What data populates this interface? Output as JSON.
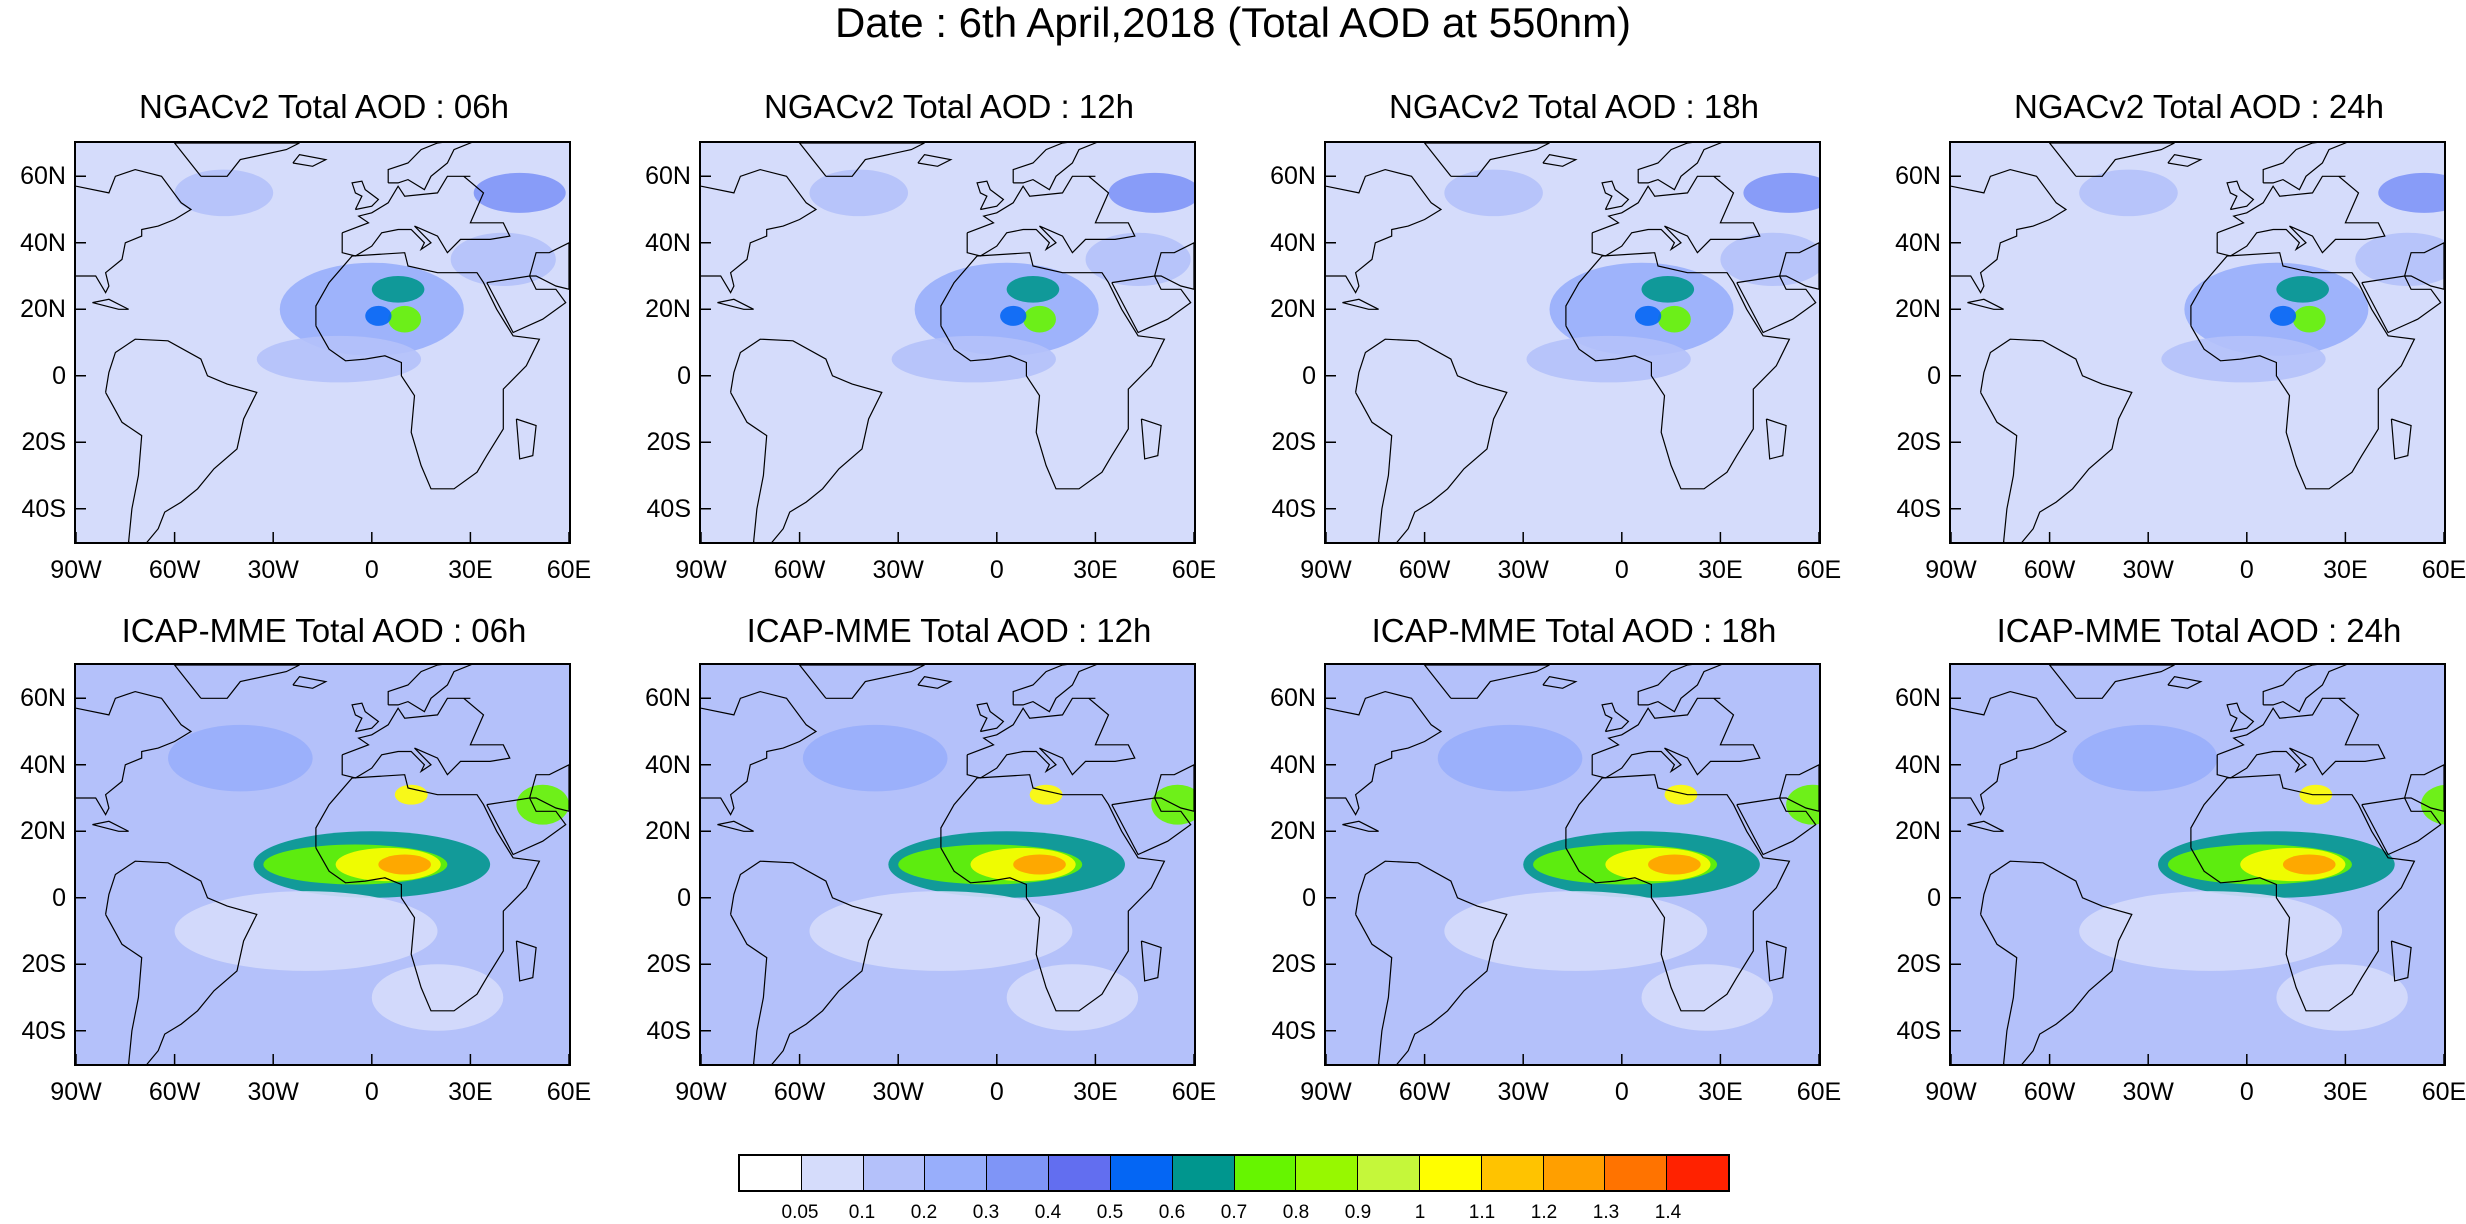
{
  "title": "Date : 6th April,2018 (Total AOD at 550nm)",
  "panels": [
    {
      "title": "NGACv2 Total AOD : 06h",
      "model": "NGACv2",
      "hour": "06h"
    },
    {
      "title": "NGACv2 Total AOD : 12h",
      "model": "NGACv2",
      "hour": "12h"
    },
    {
      "title": "NGACv2 Total AOD : 18h",
      "model": "NGACv2",
      "hour": "18h"
    },
    {
      "title": "NGACv2 Total AOD : 24h",
      "model": "NGACv2",
      "hour": "24h"
    },
    {
      "title": "ICAP-MME Total AOD : 06h",
      "model": "ICAP-MME",
      "hour": "06h"
    },
    {
      "title": "ICAP-MME Total AOD : 12h",
      "model": "ICAP-MME",
      "hour": "12h"
    },
    {
      "title": "ICAP-MME Total AOD : 18h",
      "model": "ICAP-MME",
      "hour": "18h"
    },
    {
      "title": "ICAP-MME Total AOD : 24h",
      "model": "ICAP-MME",
      "hour": "24h"
    }
  ],
  "axes": {
    "lon_labels": [
      "90W",
      "60W",
      "30W",
      "0",
      "30E",
      "60E"
    ],
    "lon_values": [
      -90,
      -60,
      -30,
      0,
      30,
      60
    ],
    "lat_labels": [
      "60N",
      "40N",
      "20N",
      "0",
      "20S",
      "40S"
    ],
    "lat_values": [
      60,
      40,
      20,
      0,
      -20,
      -40
    ],
    "lon_range": [
      -90,
      60
    ],
    "lat_range": [
      -50,
      70
    ]
  },
  "colorbar": {
    "colors": [
      "#ffffff",
      "#d5dcfb",
      "#b4c1fa",
      "#98aefb",
      "#7f95f7",
      "#626ef0",
      "#0466f4",
      "#00968e",
      "#66f500",
      "#97f800",
      "#c5f73a",
      "#fffe00",
      "#ffc300",
      "#ff9f00",
      "#ff7300",
      "#ff2200"
    ],
    "labels": [
      "0.05",
      "0.1",
      "0.2",
      "0.3",
      "0.4",
      "0.5",
      "0.6",
      "0.7",
      "0.8",
      "0.9",
      "1",
      "1.1",
      "1.2",
      "1.3",
      "1.4"
    ]
  }
}
